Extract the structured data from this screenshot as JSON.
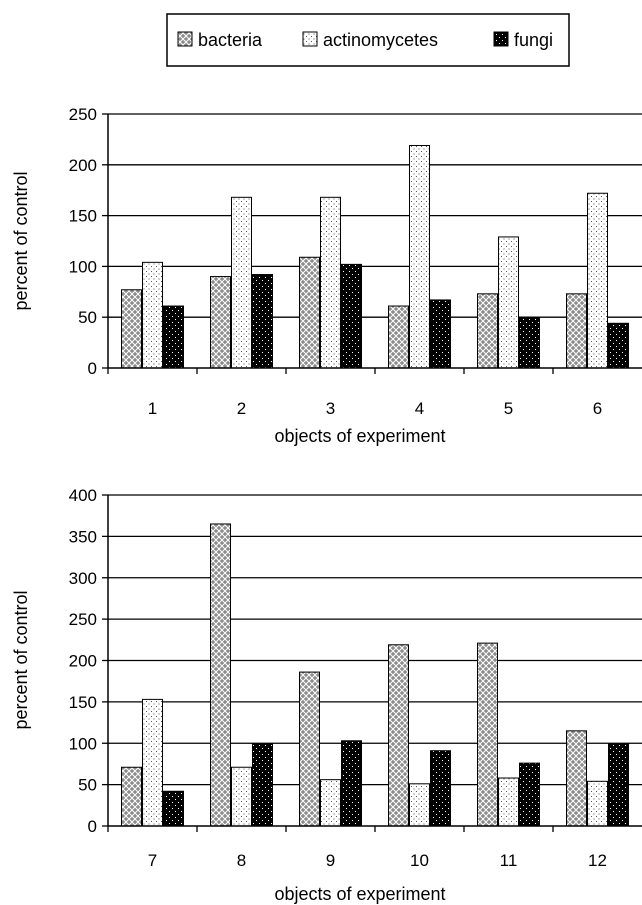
{
  "legend": {
    "items": [
      {
        "label": "bacteria",
        "pattern": "bacteria"
      },
      {
        "label": "actinomycetes",
        "pattern": "actino"
      },
      {
        "label": "fungi",
        "pattern": "fungi"
      }
    ]
  },
  "colors": {
    "bacteria_fill": "#8c8c8c",
    "actinomycetes_fill": "#ffffff",
    "fungi_fill": "#000000",
    "gridline": "#000000"
  },
  "chart_data": [
    {
      "type": "bar",
      "categories": [
        "1",
        "2",
        "3",
        "4",
        "5",
        "6"
      ],
      "series": [
        {
          "name": "bacteria",
          "values": [
            77,
            90,
            109,
            61,
            73,
            73
          ]
        },
        {
          "name": "actinomycetes",
          "values": [
            104,
            168,
            168,
            219,
            129,
            172
          ]
        },
        {
          "name": "fungi",
          "values": [
            61,
            92,
            102,
            67,
            50,
            44
          ]
        }
      ],
      "xlabel": "objects of experiment",
      "ylabel": "percent of control",
      "ylim": [
        0,
        250
      ],
      "yticks": [
        "0",
        "50",
        "100",
        "150",
        "200",
        "250"
      ],
      "grid": true
    },
    {
      "type": "bar",
      "categories": [
        "7",
        "8",
        "9",
        "10",
        "11",
        "12"
      ],
      "series": [
        {
          "name": "bacteria",
          "values": [
            71,
            365,
            186,
            219,
            221,
            115
          ]
        },
        {
          "name": "actinomycetes",
          "values": [
            153,
            71,
            56,
            51,
            58,
            54
          ]
        },
        {
          "name": "fungi",
          "values": [
            42,
            99,
            103,
            91,
            76,
            99
          ]
        }
      ],
      "xlabel": "objects of experiment",
      "ylabel": "percent of control",
      "ylim": [
        0,
        400
      ],
      "yticks": [
        "0",
        "50",
        "100",
        "150",
        "200",
        "250",
        "300",
        "350",
        "400"
      ],
      "grid": true
    }
  ]
}
